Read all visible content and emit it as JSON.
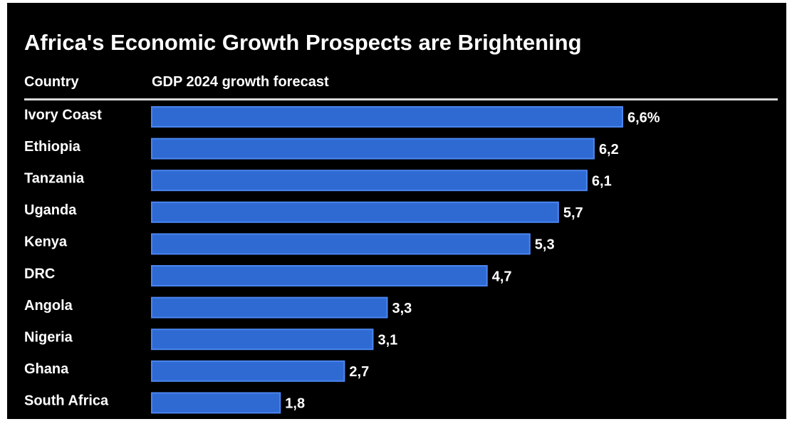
{
  "chart_data": {
    "type": "bar",
    "orientation": "horizontal",
    "title": "Africa's Economic Growth Prospects are Brightening",
    "category_header": "Country",
    "value_header": "GDP 2024 growth forecast",
    "categories": [
      "Ivory Coast",
      "Ethiopia",
      "Tanzania",
      "Uganda",
      "Kenya",
      "DRC",
      "Angola",
      "Nigeria",
      "Ghana",
      "South Africa"
    ],
    "values": [
      6.6,
      6.2,
      6.1,
      5.7,
      5.3,
      4.7,
      3.3,
      3.1,
      2.7,
      1.8
    ],
    "value_labels": [
      "6,6%",
      "6,2",
      "6,1",
      "5,7",
      "5,3",
      "4,7",
      "3,3",
      "3,1",
      "2,7",
      "1,8"
    ],
    "xlim": [
      0,
      6.6
    ],
    "grid": false,
    "legend": "none",
    "colors": {
      "background": "#000000",
      "bar": "#2f6ad3",
      "bar_edge": "#4a86ef",
      "text": "#ffffff",
      "rule": "#d9d9d9"
    }
  }
}
